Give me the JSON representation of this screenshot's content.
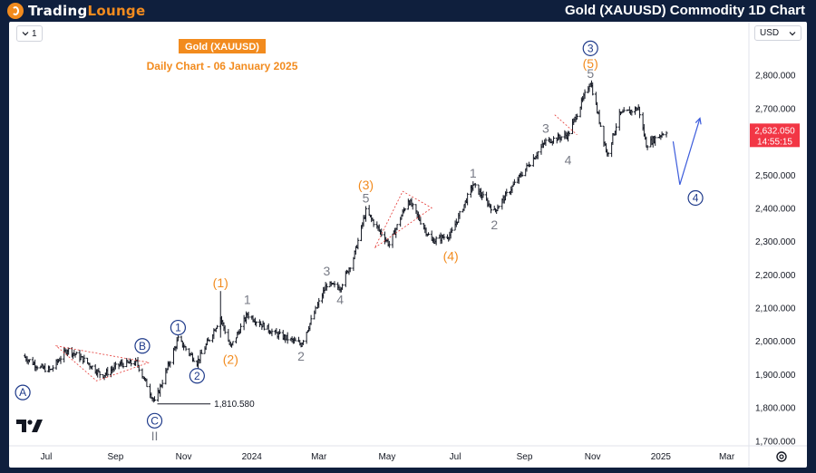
{
  "header": {
    "logo_text_main": "TradingLounge",
    "logo_text_first": "Trading",
    "logo_text_second": "Lounge",
    "title": "Gold (XAUUSD) Commodity 1D Chart"
  },
  "toolbar": {
    "interval_label": "1",
    "currency_label": "USD"
  },
  "chart_title": {
    "badge": "Gold (XAUUSD)",
    "subtitle": "Daily Chart - 06 January 2025"
  },
  "price_badge": {
    "price": "2,632.050",
    "countdown": "14:55:15"
  },
  "colors": {
    "background_bar": "#0f1f3d",
    "accent_orange": "#f28b1e",
    "candle": "#131722",
    "price_badge": "#f23645",
    "wave_gray": "#787b86",
    "wave_circle": "#1e3a8a",
    "projection": "#3b5bdb"
  },
  "icons": {
    "logo": "tradinglounge-logo-icon",
    "interval_chevron": "chevron-down-icon",
    "currency_chevron": "chevron-down-icon",
    "settings": "gear-icon",
    "watermark": "tradingview-logo-icon"
  },
  "chart_data": {
    "type": "candlestick",
    "title": "Gold (XAUUSD)",
    "subtitle": "Daily Chart - 06 January 2025",
    "x_tick_labels": [
      "Jul",
      "Sep",
      "Nov",
      "2024",
      "Mar",
      "May",
      "Jul",
      "Sep",
      "Nov",
      "2025",
      "Mar"
    ],
    "y_tick_labels": [
      "2,800.000",
      "2,700.000",
      "2,600.000",
      "2,500.000",
      "2,400.000",
      "2,300.000",
      "2,200.000",
      "2,100.000",
      "2,000.000",
      "1,900.000",
      "1,800.000",
      "1,700.000"
    ],
    "y_ticks": [
      2800,
      2700,
      2600,
      2500,
      2400,
      2300,
      2200,
      2100,
      2000,
      1900,
      1800,
      1700
    ],
    "ylim": [
      1690,
      2900
    ],
    "x_range_months": [
      "2023-06",
      "2025-03"
    ],
    "last_price": 2632.05,
    "low_annotation": {
      "label": "1,810.580",
      "value": 1810.58,
      "date": "2023-10-06"
    },
    "price_path": [
      {
        "date": "2023-06-10",
        "price": 1955
      },
      {
        "date": "2023-06-25",
        "price": 1920
      },
      {
        "date": "2023-07-05",
        "price": 1912
      },
      {
        "date": "2023-07-20",
        "price": 1975
      },
      {
        "date": "2023-08-05",
        "price": 1940
      },
      {
        "date": "2023-08-20",
        "price": 1895
      },
      {
        "date": "2023-09-05",
        "price": 1930
      },
      {
        "date": "2023-09-20",
        "price": 1935
      },
      {
        "date": "2023-10-06",
        "price": 1815
      },
      {
        "date": "2023-10-27",
        "price": 2005
      },
      {
        "date": "2023-11-13",
        "price": 1935
      },
      {
        "date": "2023-12-04",
        "price": 2070
      },
      {
        "date": "2023-12-13",
        "price": 1980
      },
      {
        "date": "2023-12-28",
        "price": 2080
      },
      {
        "date": "2024-01-20",
        "price": 2025
      },
      {
        "date": "2024-02-14",
        "price": 1990
      },
      {
        "date": "2024-03-08",
        "price": 2170
      },
      {
        "date": "2024-03-20",
        "price": 2160
      },
      {
        "date": "2024-04-01",
        "price": 2250
      },
      {
        "date": "2024-04-12",
        "price": 2390
      },
      {
        "date": "2024-05-03",
        "price": 2290
      },
      {
        "date": "2024-05-20",
        "price": 2425
      },
      {
        "date": "2024-06-10",
        "price": 2300
      },
      {
        "date": "2024-06-27",
        "price": 2320
      },
      {
        "date": "2024-07-17",
        "price": 2470
      },
      {
        "date": "2024-08-05",
        "price": 2390
      },
      {
        "date": "2024-09-20",
        "price": 2600
      },
      {
        "date": "2024-10-10",
        "price": 2620
      },
      {
        "date": "2024-10-30",
        "price": 2780
      },
      {
        "date": "2024-11-14",
        "price": 2560
      },
      {
        "date": "2024-11-25",
        "price": 2680
      },
      {
        "date": "2024-12-12",
        "price": 2700
      },
      {
        "date": "2024-12-19",
        "price": 2590
      },
      {
        "date": "2025-01-06",
        "price": 2632
      }
    ],
    "wave_labels": [
      {
        "text": "A",
        "style": "circle",
        "date": "2023-06-10",
        "price": 1845
      },
      {
        "text": "B",
        "style": "circle",
        "date": "2023-09-25",
        "price": 1985
      },
      {
        "text": "C",
        "style": "circle",
        "date": "2023-10-06",
        "price": 1760
      },
      {
        "text": "II",
        "style": "gray",
        "date": "2023-10-06",
        "price": 1715
      },
      {
        "text": "1",
        "style": "circle",
        "date": "2023-10-27",
        "price": 2040
      },
      {
        "text": "2",
        "style": "circle",
        "date": "2023-11-13",
        "price": 1895
      },
      {
        "text": "(1)",
        "style": "orange",
        "date": "2023-12-04",
        "price": 2175
      },
      {
        "text": "(2)",
        "style": "orange",
        "date": "2023-12-13",
        "price": 1945
      },
      {
        "text": "1",
        "style": "gray",
        "date": "2023-12-28",
        "price": 2125
      },
      {
        "text": "2",
        "style": "gray",
        "date": "2024-02-14",
        "price": 1955
      },
      {
        "text": "3",
        "style": "gray",
        "date": "2024-03-08",
        "price": 2210
      },
      {
        "text": "4",
        "style": "gray",
        "date": "2024-03-20",
        "price": 2125
      },
      {
        "text": "(3)",
        "style": "orange",
        "date": "2024-04-12",
        "price": 2470
      },
      {
        "text": "5",
        "style": "gray",
        "date": "2024-04-12",
        "price": 2430
      },
      {
        "text": "(4)",
        "style": "orange",
        "date": "2024-06-27",
        "price": 2255
      },
      {
        "text": "1",
        "style": "gray",
        "date": "2024-07-17",
        "price": 2505
      },
      {
        "text": "2",
        "style": "gray",
        "date": "2024-08-05",
        "price": 2350
      },
      {
        "text": "3",
        "style": "gray",
        "date": "2024-09-20",
        "price": 2640
      },
      {
        "text": "4",
        "style": "gray",
        "date": "2024-10-10",
        "price": 2545
      },
      {
        "text": "3",
        "style": "circle",
        "date": "2024-10-30",
        "price": 2880
      },
      {
        "text": "(5)",
        "style": "orange",
        "date": "2024-10-30",
        "price": 2835
      },
      {
        "text": "5",
        "style": "gray",
        "date": "2024-10-30",
        "price": 2805
      },
      {
        "text": "4",
        "style": "circle",
        "date": "2025-02-01",
        "price": 2430
      }
    ],
    "triangle_patterns": [
      {
        "points": [
          {
            "date": "2023-07-10",
            "price": 1985
          },
          {
            "date": "2023-10-01",
            "price": 1935
          },
          {
            "date": "2023-08-15",
            "price": 1880
          }
        ]
      },
      {
        "points": [
          {
            "date": "2024-04-20",
            "price": 2280
          },
          {
            "date": "2024-06-10",
            "price": 2400
          },
          {
            "date": "2024-05-15",
            "price": 2450
          }
        ]
      }
    ],
    "wedge_lines": [
      {
        "points": [
          {
            "date": "2024-09-28",
            "price": 2680
          },
          {
            "date": "2024-10-18",
            "price": 2620
          }
        ]
      }
    ],
    "projection_path": [
      {
        "date": "2025-01-12",
        "price": 2600
      },
      {
        "date": "2025-01-18",
        "price": 2470
      },
      {
        "date": "2025-02-05",
        "price": 2670
      }
    ]
  }
}
